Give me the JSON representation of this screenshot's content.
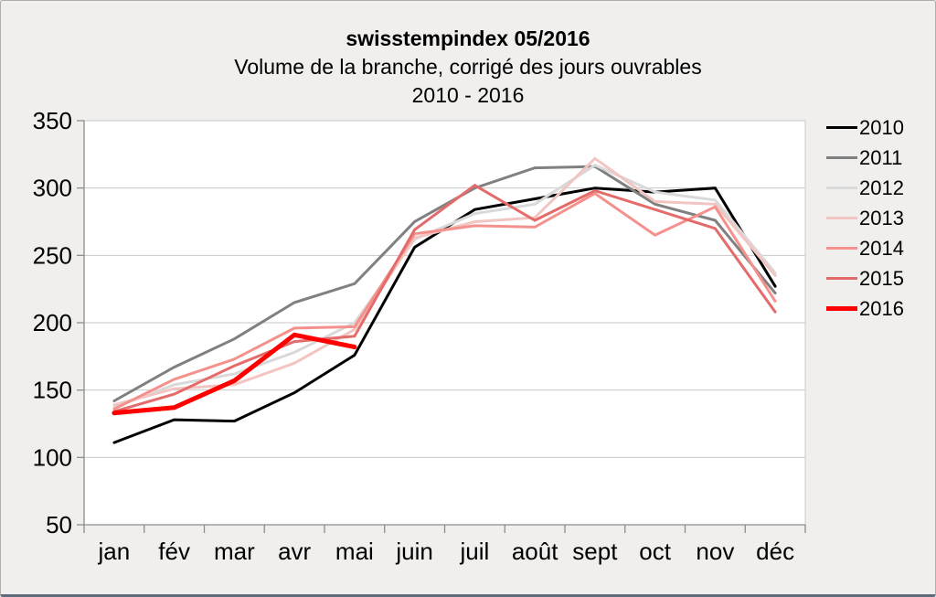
{
  "header": {
    "title": "swisstempindex 05/2016",
    "subtitle": "Volume de la branche, corrigé des jours ouvrables",
    "period": "2010 - 2016"
  },
  "chart_data": {
    "type": "line",
    "title": "swisstempindex 05/2016",
    "subtitle": "Volume de la branche, corrigé des jours ouvrables",
    "period_label": "2010 - 2016",
    "categories": [
      "jan",
      "fév",
      "mar",
      "avr",
      "mai",
      "juin",
      "juil",
      "août",
      "sept",
      "oct",
      "nov",
      "déc"
    ],
    "ylim": [
      50,
      350
    ],
    "ytick_step": 50,
    "grid": true,
    "legend_position": "right",
    "series": [
      {
        "name": "2010",
        "color": "#000000",
        "line_width": 3,
        "values": [
          111,
          128,
          127,
          148,
          176,
          256,
          284,
          292,
          300,
          297,
          300,
          227
        ]
      },
      {
        "name": "2011",
        "color": "#808080",
        "line_width": 3,
        "values": [
          142,
          167,
          188,
          215,
          229,
          275,
          300,
          315,
          316,
          288,
          276,
          222
        ]
      },
      {
        "name": "2012",
        "color": "#d9d9d9",
        "line_width": 3,
        "values": [
          137,
          154,
          162,
          178,
          200,
          262,
          281,
          288,
          317,
          297,
          291,
          237
        ]
      },
      {
        "name": "2013",
        "color": "#f2c5c2",
        "line_width": 3,
        "values": [
          139,
          151,
          154,
          170,
          195,
          263,
          275,
          278,
          322,
          290,
          288,
          235
        ]
      },
      {
        "name": "2014",
        "color": "#f5918c",
        "line_width": 3,
        "values": [
          136,
          158,
          173,
          196,
          197,
          266,
          272,
          271,
          296,
          265,
          286,
          216
        ]
      },
      {
        "name": "2015",
        "color": "#e56b6b",
        "line_width": 3,
        "values": [
          134,
          147,
          168,
          186,
          190,
          269,
          302,
          276,
          298,
          284,
          270,
          208
        ]
      },
      {
        "name": "2016",
        "color": "#ff0000",
        "line_width": 5,
        "values": [
          133,
          137,
          157,
          191,
          182,
          null,
          null,
          null,
          null,
          null,
          null,
          null
        ]
      }
    ]
  },
  "style_colors": {
    "page_background": "#f0efed",
    "plot_background": "#ffffff",
    "gridline": "#c9c9c9",
    "axis": "#8c8c8c",
    "text": "#000000"
  }
}
